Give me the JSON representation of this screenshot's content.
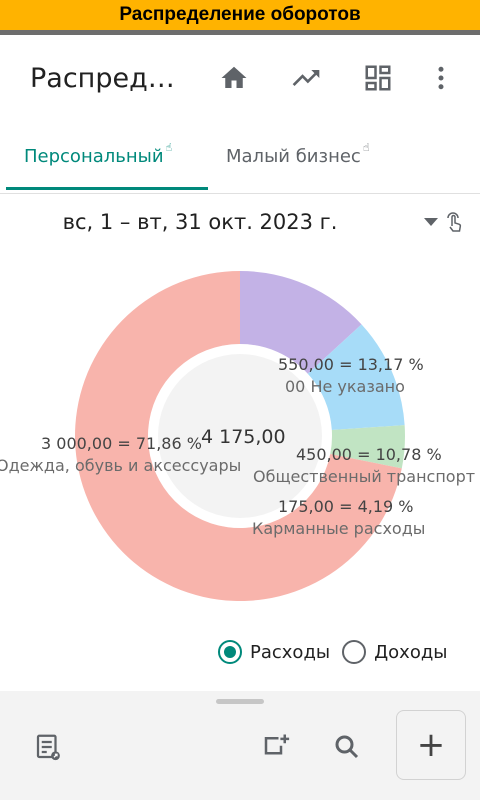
{
  "banner": {
    "title": "Распределение оборотов"
  },
  "appbar": {
    "title": "Распред…",
    "icons": [
      "home-icon",
      "trending-up-icon",
      "dashboard-icon",
      "more-vert-icon"
    ]
  },
  "tabs": [
    {
      "label": "Персональный",
      "active": true
    },
    {
      "label": "Малый бизнес",
      "active": false
    }
  ],
  "date_range": {
    "label": "вс, 1 – вт, 31 окт. 2023 г."
  },
  "colors": {
    "accent": "#00897b"
  },
  "chart_data": {
    "type": "pie",
    "total": "4 175,00",
    "slices": [
      {
        "name": "Одежда, обувь и аксессуары",
        "value": 3000.0,
        "value_label": "3 000,00 = 71,86 %",
        "color": "#f8b4ac"
      },
      {
        "name": "00 Не указано",
        "value": 550.0,
        "value_label": "550,00 = 13,17 %",
        "color": "#c3b2e6"
      },
      {
        "name": "Общественный транспорт",
        "value": 450.0,
        "value_label": "450,00 = 10,78 %",
        "color": "#a7dcf8"
      },
      {
        "name": "Карманные расходы",
        "value": 175.0,
        "value_label": "175,00 = 4,19 %",
        "color": "#c1e4c3"
      }
    ]
  },
  "type_selector": {
    "options": [
      {
        "label": "Расходы",
        "selected": true
      },
      {
        "label": "Доходы",
        "selected": false
      }
    ]
  },
  "bottom_bar": {
    "icons": [
      "report-icon",
      "add-box-icon",
      "search-icon"
    ],
    "fab_label": "+"
  }
}
